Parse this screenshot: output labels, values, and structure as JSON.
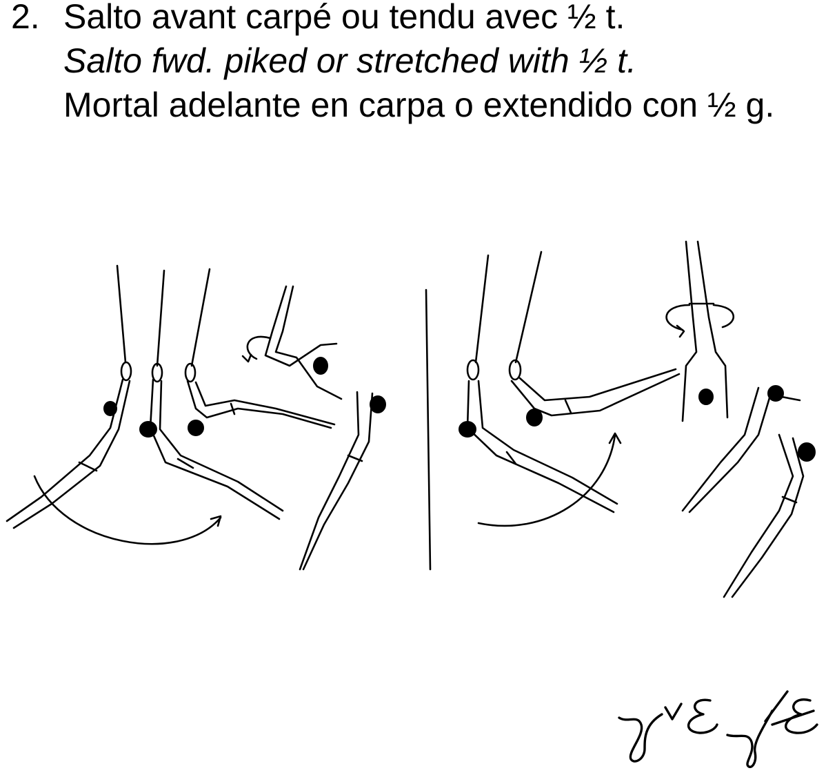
{
  "element": {
    "number": "2.",
    "name_fr": "Salto avant carpé ou tendu avec ½ t.",
    "name_en": "Salto fwd. piked or stretched with ½ t.",
    "name_es": "Mortal adelante en carpa o extendido con ½ g."
  },
  "illustration": {
    "panels": [
      "piked",
      "stretched"
    ],
    "colors": {
      "ink": "#000000",
      "paper": "#ffffff"
    }
  },
  "notation": {
    "kind": "handwritten-symbol"
  }
}
